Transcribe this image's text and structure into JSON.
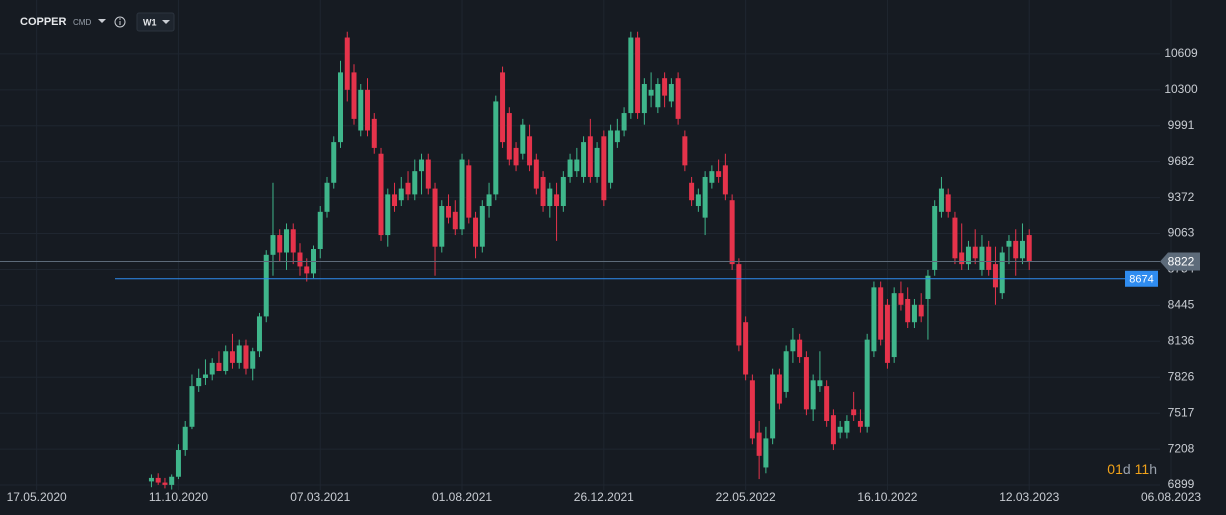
{
  "header": {
    "symbol": "COPPER",
    "market": "CMD",
    "timeframe": "W1"
  },
  "countdown": [
    "01",
    "d",
    "11",
    "h"
  ],
  "chart_data": {
    "type": "candlestick",
    "up_color": "#3fb68b",
    "down_color": "#e5334b",
    "grid": true,
    "xlim": [
      "09.04.2020",
      "02.10.2023"
    ],
    "xticks": [
      "17.05.2020",
      "11.10.2020",
      "07.03.2021",
      "01.08.2021",
      "26.12.2021",
      "22.05.2022",
      "16.10.2022",
      "12.03.2023",
      "06.08.2023"
    ],
    "ylim": [
      6856,
      11073
    ],
    "yticks": [
      10609,
      10300,
      9991,
      9682,
      9372,
      9063,
      8754,
      8445,
      8136,
      7826,
      7517,
      7208,
      6899
    ],
    "price_lines": [
      {
        "value": 8822,
        "color": "#5d6b7a"
      },
      {
        "value": 8674,
        "color": "#2f8cf0"
      }
    ],
    "x": [
      "13.09.2020",
      "20.09.2020",
      "27.09.2020",
      "04.10.2020",
      "11.10.2020",
      "18.10.2020",
      "25.10.2020",
      "01.11.2020",
      "08.11.2020",
      "15.11.2020",
      "22.11.2020",
      "29.11.2020",
      "06.12.2020",
      "13.12.2020",
      "20.12.2020",
      "27.12.2020",
      "03.01.2021",
      "10.01.2021",
      "17.01.2021",
      "24.01.2021",
      "31.01.2021",
      "07.02.2021",
      "14.02.2021",
      "21.02.2021",
      "28.02.2021",
      "07.03.2021",
      "14.03.2021",
      "21.03.2021",
      "28.03.2021",
      "04.04.2021",
      "11.04.2021",
      "18.04.2021",
      "25.04.2021",
      "02.05.2021",
      "09.05.2021",
      "16.05.2021",
      "23.05.2021",
      "30.05.2021",
      "06.06.2021",
      "13.06.2021",
      "20.06.2021",
      "27.06.2021",
      "04.07.2021",
      "11.07.2021",
      "18.07.2021",
      "25.07.2021",
      "01.08.2021",
      "08.08.2021",
      "15.08.2021",
      "22.08.2021",
      "29.08.2021",
      "05.09.2021",
      "12.09.2021",
      "19.09.2021",
      "26.09.2021",
      "03.10.2021",
      "10.10.2021",
      "17.10.2021",
      "24.10.2021",
      "31.10.2021",
      "07.11.2021",
      "14.11.2021",
      "21.11.2021",
      "28.11.2021",
      "05.12.2021",
      "12.12.2021",
      "19.12.2021",
      "26.12.2021",
      "02.01.2022",
      "09.01.2022",
      "16.01.2022",
      "23.01.2022",
      "30.01.2022",
      "06.02.2022",
      "13.02.2022",
      "20.02.2022",
      "27.02.2022",
      "06.03.2022",
      "13.03.2022",
      "20.03.2022",
      "27.03.2022",
      "03.04.2022",
      "10.04.2022",
      "17.04.2022",
      "24.04.2022",
      "01.05.2022",
      "08.05.2022",
      "15.05.2022",
      "22.05.2022",
      "29.05.2022",
      "05.06.2022",
      "12.06.2022",
      "19.06.2022",
      "26.06.2022",
      "03.07.2022",
      "10.07.2022",
      "17.07.2022",
      "24.07.2022",
      "31.07.2022",
      "07.08.2022",
      "14.08.2022",
      "21.08.2022",
      "28.08.2022",
      "04.09.2022",
      "11.09.2022",
      "18.09.2022",
      "25.09.2022",
      "02.10.2022",
      "09.10.2022",
      "16.10.2022",
      "23.10.2022",
      "30.10.2022",
      "06.11.2022",
      "13.11.2022",
      "20.11.2022",
      "27.11.2022",
      "04.12.2022",
      "11.12.2022",
      "18.12.2022",
      "25.12.2022",
      "01.01.2023",
      "08.01.2023",
      "15.01.2023",
      "22.01.2023",
      "29.01.2023",
      "05.02.2023",
      "12.02.2023",
      "19.02.2023",
      "26.02.2023",
      "05.03.2023",
      "12.03.2023"
    ],
    "ohlc": [
      [
        6930,
        6990,
        6880,
        6960
      ],
      [
        6960,
        7000,
        6900,
        6920
      ],
      [
        6920,
        6960,
        6870,
        6900
      ],
      [
        6900,
        6990,
        6860,
        6970
      ],
      [
        6970,
        7250,
        6950,
        7200
      ],
      [
        7200,
        7450,
        7150,
        7400
      ],
      [
        7400,
        7850,
        7380,
        7750
      ],
      [
        7750,
        7900,
        7700,
        7820
      ],
      [
        7820,
        7980,
        7760,
        7850
      ],
      [
        7850,
        7990,
        7800,
        7950
      ],
      [
        7950,
        8050,
        7900,
        7880
      ],
      [
        7880,
        8100,
        7850,
        8050
      ],
      [
        8050,
        8200,
        7900,
        7950
      ],
      [
        7950,
        8150,
        7900,
        8100
      ],
      [
        8100,
        8150,
        7850,
        7900
      ],
      [
        7900,
        8080,
        7800,
        8050
      ],
      [
        8050,
        8380,
        8000,
        8350
      ],
      [
        8350,
        8920,
        8300,
        8880
      ],
      [
        8880,
        9500,
        8700,
        9050
      ],
      [
        9050,
        9100,
        8820,
        8900
      ],
      [
        8900,
        9150,
        8750,
        9100
      ],
      [
        9100,
        9150,
        8800,
        8900
      ],
      [
        8900,
        8980,
        8700,
        8780
      ],
      [
        8780,
        8850,
        8650,
        8720
      ],
      [
        8720,
        8960,
        8680,
        8930
      ],
      [
        8930,
        9300,
        8850,
        9250
      ],
      [
        9250,
        9550,
        9200,
        9500
      ],
      [
        9500,
        9900,
        9450,
        9850
      ],
      [
        9850,
        10550,
        9800,
        10450
      ],
      [
        10750,
        10800,
        10200,
        10300
      ],
      [
        10450,
        10520,
        10000,
        10050
      ],
      [
        9950,
        10350,
        9900,
        10300
      ],
      [
        10300,
        10400,
        9900,
        9950
      ],
      [
        10050,
        10100,
        9750,
        9800
      ],
      [
        9750,
        9800,
        9000,
        9050
      ],
      [
        9050,
        9450,
        8950,
        9400
      ],
      [
        9400,
        9500,
        9250,
        9300
      ],
      [
        9350,
        9550,
        9300,
        9450
      ],
      [
        9500,
        9600,
        9350,
        9400
      ],
      [
        9400,
        9700,
        9350,
        9600
      ],
      [
        9600,
        9750,
        9400,
        9700
      ],
      [
        9700,
        9750,
        9400,
        9450
      ],
      [
        9450,
        9500,
        8700,
        8950
      ],
      [
        8950,
        9350,
        8900,
        9300
      ],
      [
        9300,
        9400,
        9150,
        9200
      ],
      [
        9250,
        9350,
        9050,
        9100
      ],
      [
        9100,
        9750,
        9050,
        9700
      ],
      [
        9650,
        9700,
        9150,
        9200
      ],
      [
        9200,
        9250,
        8850,
        8950
      ],
      [
        8950,
        9350,
        8900,
        9300
      ],
      [
        9300,
        9500,
        9200,
        9400
      ],
      [
        9400,
        10250,
        9350,
        10200
      ],
      [
        10450,
        10500,
        9800,
        9850
      ],
      [
        10100,
        10150,
        9650,
        9700
      ],
      [
        9800,
        9850,
        9600,
        9650
      ],
      [
        9750,
        10050,
        9700,
        10000
      ],
      [
        9900,
        10000,
        9600,
        9650
      ],
      [
        9700,
        9750,
        9400,
        9450
      ],
      [
        9550,
        9600,
        9250,
        9300
      ],
      [
        9300,
        9500,
        9200,
        9450
      ],
      [
        9400,
        9500,
        9000,
        9300
      ],
      [
        9300,
        9600,
        9250,
        9550
      ],
      [
        9550,
        9750,
        9500,
        9700
      ],
      [
        9600,
        9800,
        9550,
        9700
      ],
      [
        9550,
        9900,
        9500,
        9850
      ],
      [
        9900,
        10050,
        9500,
        9550
      ],
      [
        9550,
        9850,
        9500,
        9800
      ],
      [
        9900,
        9950,
        9300,
        9350
      ],
      [
        9500,
        10000,
        9450,
        9950
      ],
      [
        9850,
        10050,
        9800,
        9950
      ],
      [
        9950,
        10150,
        9900,
        10100
      ],
      [
        10100,
        10800,
        10050,
        10750
      ],
      [
        10750,
        10800,
        10050,
        10100
      ],
      [
        10100,
        10400,
        10000,
        10350
      ],
      [
        10250,
        10450,
        10150,
        10300
      ],
      [
        10150,
        10400,
        10100,
        10350
      ],
      [
        10400,
        10450,
        10150,
        10250
      ],
      [
        10200,
        10400,
        10150,
        10350
      ],
      [
        10400,
        10450,
        10000,
        10050
      ],
      [
        9900,
        9950,
        9600,
        9650
      ],
      [
        9500,
        9550,
        9300,
        9350
      ],
      [
        9300,
        9450,
        9250,
        9400
      ],
      [
        9200,
        9600,
        9050,
        9550
      ],
      [
        9500,
        9650,
        9450,
        9600
      ],
      [
        9600,
        9700,
        9500,
        9550
      ],
      [
        9650,
        9750,
        9350,
        9400
      ],
      [
        9350,
        9400,
        8750,
        8800
      ],
      [
        8800,
        8850,
        8050,
        8100
      ],
      [
        8300,
        8350,
        7800,
        7850
      ],
      [
        7800,
        7850,
        7250,
        7300
      ],
      [
        7350,
        7450,
        6950,
        7150
      ],
      [
        7050,
        7400,
        7000,
        7300
      ],
      [
        7300,
        7900,
        7250,
        7850
      ],
      [
        7850,
        7900,
        7550,
        7600
      ],
      [
        7700,
        8100,
        7650,
        8050
      ],
      [
        8050,
        8250,
        7950,
        8150
      ],
      [
        8150,
        8200,
        7950,
        8000
      ],
      [
        8000,
        8050,
        7500,
        7550
      ],
      [
        7550,
        7850,
        7450,
        7800
      ],
      [
        7750,
        8050,
        7700,
        7800
      ],
      [
        7750,
        7800,
        7400,
        7450
      ],
      [
        7500,
        7550,
        7200,
        7250
      ],
      [
        7350,
        7450,
        7300,
        7400
      ],
      [
        7350,
        7500,
        7300,
        7450
      ],
      [
        7550,
        7700,
        7450,
        7500
      ],
      [
        7450,
        7550,
        7350,
        7400
      ],
      [
        7400,
        8200,
        7350,
        8150
      ],
      [
        8050,
        8650,
        8000,
        8600
      ],
      [
        8600,
        8650,
        8100,
        8150
      ],
      [
        8450,
        8500,
        7900,
        7950
      ],
      [
        8000,
        8600,
        7950,
        8550
      ],
      [
        8550,
        8650,
        8400,
        8450
      ],
      [
        8500,
        8600,
        8250,
        8300
      ],
      [
        8300,
        8500,
        8250,
        8450
      ],
      [
        8450,
        8550,
        8300,
        8350
      ],
      [
        8500,
        8750,
        8150,
        8700
      ],
      [
        8750,
        9350,
        8700,
        9300
      ],
      [
        9250,
        9550,
        9200,
        9450
      ],
      [
        9400,
        9450,
        9200,
        9250
      ],
      [
        9200,
        9250,
        8800,
        8850
      ],
      [
        8900,
        9150,
        8750,
        8800
      ],
      [
        8800,
        9000,
        8750,
        8950
      ],
      [
        8950,
        9100,
        8800,
        8850
      ],
      [
        8750,
        9050,
        8700,
        8950
      ],
      [
        8950,
        9000,
        8700,
        8750
      ],
      [
        8800,
        8950,
        8450,
        8600
      ],
      [
        8550,
        8950,
        8500,
        8900
      ],
      [
        8950,
        9050,
        8800,
        9000
      ],
      [
        9000,
        9100,
        8700,
        8850
      ],
      [
        8850,
        9150,
        8800,
        9000
      ],
      [
        9050,
        9100,
        8750,
        8822
      ]
    ]
  }
}
